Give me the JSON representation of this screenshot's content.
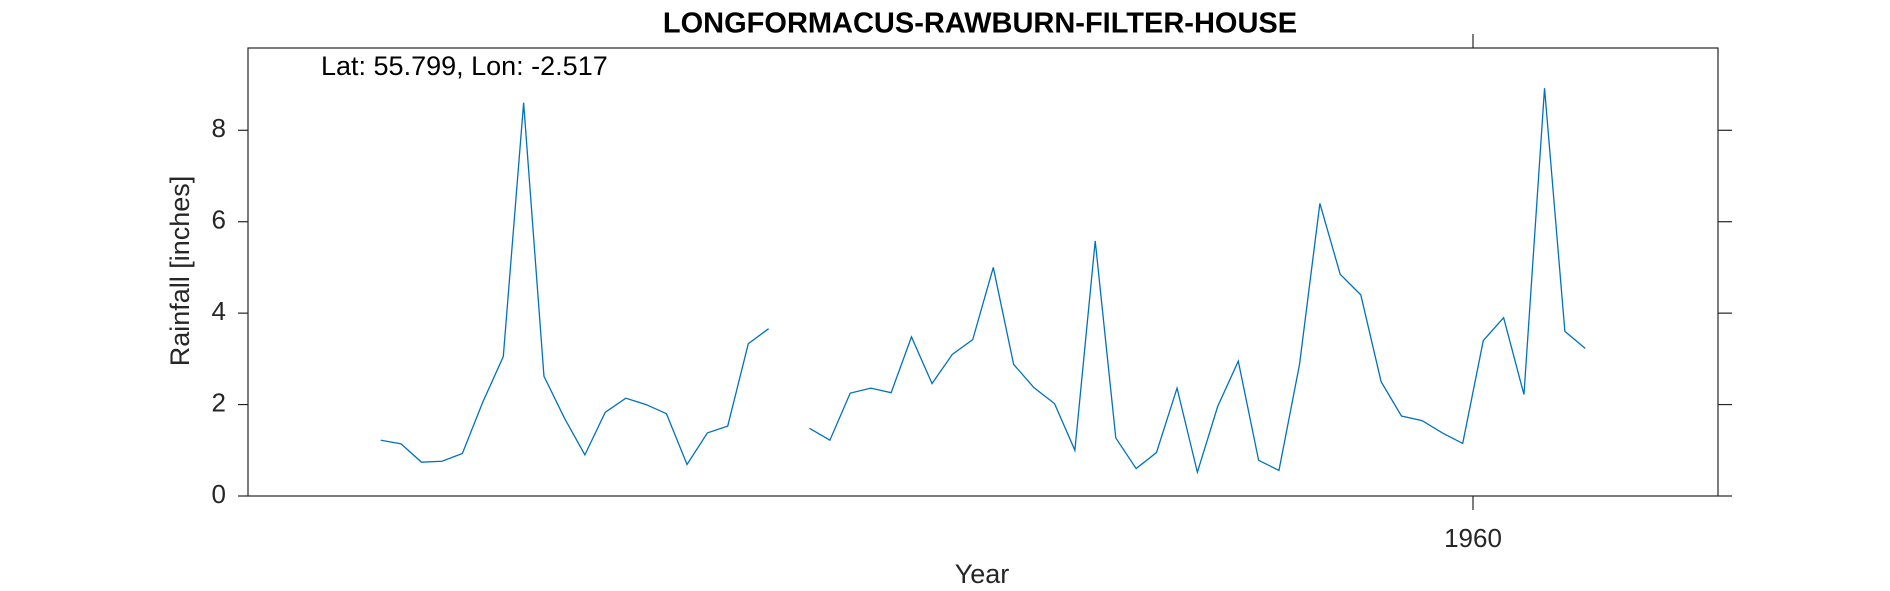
{
  "chart_data": {
    "type": "line",
    "title": "LONGFORMACUS-RAWBURN-FILTER-HOUSE",
    "annotation": "Lat: 55.799, Lon: -2.517",
    "xlabel": "Year",
    "ylabel": "Rainfall [inches]",
    "x": [
      1955.542,
      1955.625,
      1955.708,
      1955.792,
      1955.875,
      1955.958,
      1956.042,
      1956.125,
      1956.208,
      1956.292,
      1956.375,
      1956.458,
      1956.542,
      1956.625,
      1956.708,
      1956.792,
      1956.875,
      1956.958,
      1957.042,
      1957.125,
      1957.208,
      1957.292,
      1957.375,
      1957.458,
      1957.542,
      1957.625,
      1957.708,
      1957.792,
      1957.875,
      1957.958,
      1958.042,
      1958.125,
      1958.208,
      1958.292,
      1958.375,
      1958.458,
      1958.542,
      1958.625,
      1958.708,
      1958.792,
      1958.875,
      1958.958,
      1959.042,
      1959.125,
      1959.208,
      1959.292,
      1959.375,
      1959.458,
      1959.542,
      1959.625,
      1959.708,
      1959.792,
      1959.875,
      1959.958,
      1960.042,
      1960.125,
      1960.208,
      1960.292,
      1960.375,
      1960.458
    ],
    "series": [
      {
        "color": "#0072bd",
        "values": [
          1.22,
          1.14,
          0.74,
          0.76,
          0.93,
          2.05,
          3.05,
          8.6,
          2.62,
          1.7,
          0.9,
          1.83,
          2.14,
          2.0,
          1.8,
          0.69,
          1.38,
          1.53,
          3.33,
          3.66,
          null,
          1.48,
          1.22,
          2.25,
          2.36,
          2.26,
          3.48,
          2.46,
          3.1,
          3.42,
          5.0,
          2.88,
          2.37,
          2.02,
          1.0,
          5.58,
          1.27,
          0.6,
          0.95,
          2.36,
          0.52,
          1.96,
          2.95,
          0.78,
          0.56,
          2.88,
          6.4,
          4.85,
          4.4,
          2.5,
          1.75,
          1.65,
          1.38,
          1.15,
          3.4,
          3.9,
          2.22,
          8.92,
          3.6,
          3.23
        ]
      }
    ],
    "xlim": [
      1955,
      1961
    ],
    "xticks": [
      1960
    ],
    "ylim": [
      0,
      9.8
    ],
    "yticks": [
      0,
      2,
      4,
      6,
      8
    ]
  }
}
